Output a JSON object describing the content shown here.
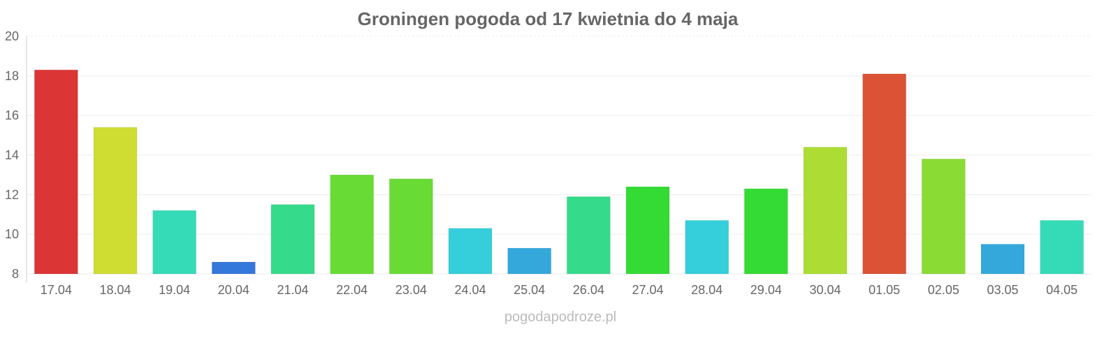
{
  "chart_data": {
    "type": "bar",
    "title": "Groningen pogoda od 17 kwietnia do 4 maja",
    "xlabel": "",
    "ylabel": "",
    "ylim": [
      8,
      20
    ],
    "yticks": [
      "8",
      "10",
      "12",
      "14",
      "16",
      "18",
      "20"
    ],
    "grid": true,
    "categories": [
      "17.04",
      "18.04",
      "19.04",
      "20.04",
      "21.04",
      "22.04",
      "23.04",
      "24.04",
      "25.04",
      "26.04",
      "27.04",
      "28.04",
      "29.04",
      "30.04",
      "01.05",
      "02.05",
      "03.05",
      "04.05"
    ],
    "values": [
      18.3,
      15.4,
      11.2,
      8.6,
      11.5,
      13.0,
      12.8,
      10.3,
      9.3,
      11.9,
      12.4,
      10.7,
      12.3,
      14.4,
      18.1,
      13.8,
      9.5,
      10.7
    ],
    "colors": [
      "#db3535",
      "#cfdd33",
      "#35dbb7",
      "#3578db",
      "#35db8b",
      "#69db35",
      "#69db35",
      "#35cfdb",
      "#35a8db",
      "#35db8b",
      "#35db35",
      "#35cfdb",
      "#35db35",
      "#addd35",
      "#db5235",
      "#8bdb35",
      "#35a8db",
      "#35dbb7"
    ]
  },
  "watermark": "pogodapodroze.pl"
}
